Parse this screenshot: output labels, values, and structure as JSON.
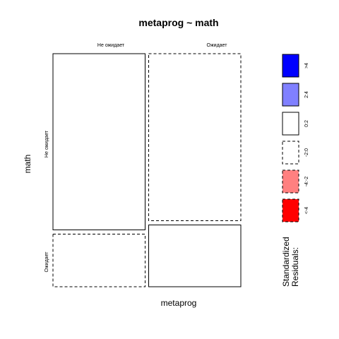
{
  "chart_data": {
    "type": "mosaic",
    "title": "metaprog ~ math",
    "xlabel": "metaprog",
    "ylabel": "math",
    "x_categories": [
      "Не ожидает",
      "Ожидает"
    ],
    "y_categories": [
      "Не ожидает",
      "Ожидает"
    ],
    "x_proportions": [
      0.5,
      0.5
    ],
    "y_proportions_by_x": [
      [
        0.77,
        0.23
      ],
      [
        0.73,
        0.27
      ]
    ],
    "cells": [
      {
        "x": "Не ожидает",
        "y": "Не ожидает",
        "residual_band": "0:2"
      },
      {
        "x": "Не ожидает",
        "y": "Ожидает",
        "residual_band": "-2:0"
      },
      {
        "x": "Ожидает",
        "y": "Не ожидает",
        "residual_band": "-2:0"
      },
      {
        "x": "Ожидает",
        "y": "Ожидает",
        "residual_band": "0:2"
      }
    ],
    "legend": {
      "title_lines": [
        "Standardized",
        "Residuals:"
      ],
      "placement": "right",
      "items": [
        {
          "label": ">4",
          "color": "#0000ff",
          "dashed": false
        },
        {
          "label": "2:4",
          "color": "#8080ff",
          "dashed": false
        },
        {
          "label": "0:2",
          "color": "#ffffff",
          "dashed": false
        },
        {
          "label": "-2:0",
          "color": "#ffffff",
          "dashed": true
        },
        {
          "label": "-4:-2",
          "color": "#ff8080",
          "dashed": true
        },
        {
          "label": "<-4",
          "color": "#ff0000",
          "dashed": true
        }
      ]
    }
  }
}
